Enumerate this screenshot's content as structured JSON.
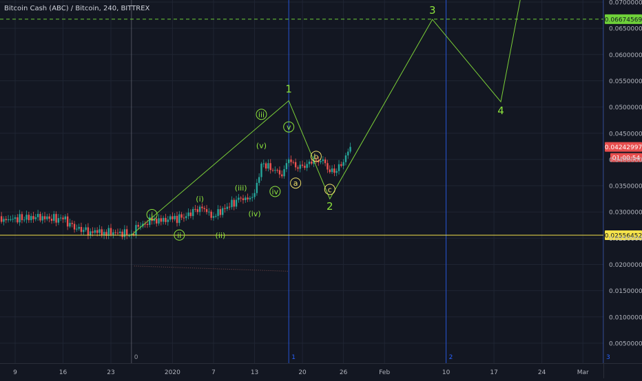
{
  "header": {
    "title": "Bitcoin Cash (ABC) / Bitcoin, 240, BITTREX"
  },
  "colors": {
    "background": "#131722",
    "grid": "#1f2533",
    "up": "#26a69a",
    "down": "#ef5350",
    "wave": "#7cd138",
    "wave_label": "#8ee63c",
    "sub_label": "#f0e06a",
    "fib": "#2962ff",
    "price_tag_red": "#e84e4e",
    "price_tag_green": "#6fd13a",
    "price_tag_yellow": "#f6e34a"
  },
  "chart_data": {
    "type": "candlestick",
    "title": "Bitcoin Cash (ABC) / Bitcoin, 240, BITTREX",
    "x_axis": {
      "tick_labels": [
        "9",
        "16",
        "23",
        "2020",
        "7",
        "13",
        "20",
        "26",
        "Feb",
        "10",
        "17",
        "24",
        "Mar"
      ],
      "tick_dates": [
        "2019-12-09",
        "2019-12-16",
        "2019-12-23",
        "2020-01-01",
        "2020-01-07",
        "2020-01-13",
        "2020-01-20",
        "2020-01-26",
        "2020-02-01",
        "2020-02-10",
        "2020-02-17",
        "2020-02-24",
        "2020-03-01"
      ]
    },
    "y_axis": {
      "tick_labels": [
        "0.07000000",
        "0.06500000",
        "0.06000000",
        "0.05500000",
        "0.05000000",
        "0.04500000",
        "0.04000000",
        "0.03500000",
        "0.03000000",
        "0.02500000",
        "0.02000000",
        "0.01500000",
        "0.01000000",
        "0.00500000"
      ],
      "range": [
        0.0015,
        0.0715
      ]
    },
    "grid": true,
    "price_series": {
      "x": [
        "2019-12-02",
        "2019-12-05",
        "2019-12-08",
        "2019-12-12",
        "2019-12-16",
        "2019-12-18",
        "2019-12-20",
        "2019-12-22",
        "2019-12-26",
        "2019-12-27",
        "2019-12-29",
        "2020-01-01",
        "2020-01-03",
        "2020-01-05",
        "2020-01-07",
        "2020-01-09",
        "2020-01-11",
        "2020-01-12",
        "2020-01-13",
        "2020-01-14",
        "2020-01-16",
        "2020-01-17",
        "2020-01-18",
        "2020-01-19",
        "2020-01-20",
        "2020-01-22",
        "2020-01-23",
        "2020-01-24",
        "2020-01-25",
        "2020-01-26",
        "2020-01-27"
      ],
      "close": [
        0.0282,
        0.0283,
        0.0286,
        0.029,
        0.0286,
        0.0268,
        0.0263,
        0.0262,
        0.0258,
        0.0272,
        0.0283,
        0.0286,
        0.0292,
        0.031,
        0.0292,
        0.031,
        0.0326,
        0.0324,
        0.0336,
        0.0392,
        0.038,
        0.0368,
        0.04,
        0.0385,
        0.0388,
        0.0398,
        0.04,
        0.0376,
        0.0378,
        0.0395,
        0.0424
      ]
    },
    "horizontal_levels": [
      {
        "value": 0.06674569,
        "label": "0.06674569",
        "style": "dashed"
      },
      {
        "value": 0.02556452,
        "label": "0.02556452",
        "style": "solid"
      }
    ],
    "current_price": {
      "label": "0.04242997",
      "countdown": "01:00:54"
    },
    "fib_time_markers": [
      {
        "date": "2019-12-26",
        "label": "0"
      },
      {
        "date": "2020-01-18",
        "label": "1"
      },
      {
        "date": "2020-02-10",
        "label": "2"
      },
      {
        "date": "2020-03-04",
        "label": "3"
      }
    ],
    "wave_projection": {
      "x": [
        "2019-12-26",
        "2020-01-18",
        "2020-01-24",
        "2020-02-08",
        "2020-02-18",
        "2020-02-21"
      ],
      "y": [
        0.0256,
        0.0512,
        0.0325,
        0.0667,
        0.051,
        0.0715
      ],
      "labels": [
        "",
        "1",
        "2",
        "3",
        "4",
        ""
      ]
    },
    "subwave_labels": [
      {
        "text": "i",
        "date": "2019-12-29",
        "value": 0.0295,
        "circled": true
      },
      {
        "text": "ii",
        "date": "2020-01-02",
        "value": 0.0256,
        "circled": true
      },
      {
        "text": "(i)",
        "date": "2020-01-05",
        "value": 0.0325,
        "circled": false
      },
      {
        "text": "(ii)",
        "date": "2020-01-08",
        "value": 0.0256,
        "circled": false
      },
      {
        "text": "(iii)",
        "date": "2020-01-11",
        "value": 0.0346,
        "circled": false
      },
      {
        "text": "(iv)",
        "date": "2020-01-13",
        "value": 0.0297,
        "circled": false
      },
      {
        "text": "(v)",
        "date": "2020-01-14",
        "value": 0.0427,
        "circled": false
      },
      {
        "text": "iii",
        "date": "2020-01-14",
        "value": 0.0486,
        "circled": true
      },
      {
        "text": "iv",
        "date": "2020-01-16",
        "value": 0.0339,
        "circled": true
      },
      {
        "text": "v",
        "date": "2020-01-18",
        "value": 0.0462,
        "circled": true
      },
      {
        "text": "a",
        "date": "2020-01-19",
        "value": 0.0355,
        "circled": true
      },
      {
        "text": "b",
        "date": "2020-01-22",
        "value": 0.0406,
        "circled": true
      },
      {
        "text": "c",
        "date": "2020-01-24",
        "value": 0.0343,
        "circled": true
      }
    ]
  }
}
